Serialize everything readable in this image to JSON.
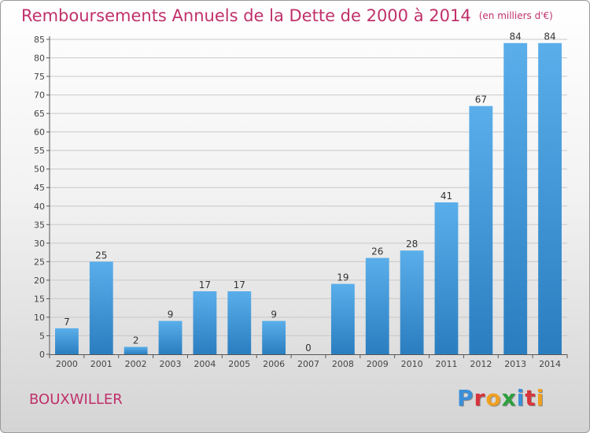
{
  "header": {
    "title": "Remboursements Annuels de la Dette de 2000 à 2014",
    "subtitle": "(en milliers d'€)"
  },
  "footer": {
    "city": "BOUXWILLER",
    "logo_text": "Proxiti"
  },
  "colors": {
    "accent": "#c0306a",
    "bar_light": "#5aaeea",
    "bar_dark": "#2a7ec0",
    "logo_letters": [
      "#3a8fd8",
      "#d8343b",
      "#f0a020",
      "#2e9f3e",
      "#3a8fd8",
      "#d8343b",
      "#f0a020"
    ]
  },
  "chart_data": {
    "type": "bar",
    "title": "Remboursements Annuels de la Dette de 2000 à 2014",
    "subtitle": "(en milliers d'€)",
    "categories": [
      "2000",
      "2001",
      "2002",
      "2003",
      "2004",
      "2005",
      "2006",
      "2007",
      "2008",
      "2009",
      "2010",
      "2011",
      "2012",
      "2013",
      "2014"
    ],
    "values": [
      7,
      25,
      2,
      9,
      17,
      17,
      9,
      0,
      19,
      26,
      28,
      41,
      67,
      84,
      84
    ],
    "yticks": [
      0,
      5,
      10,
      15,
      20,
      25,
      30,
      35,
      40,
      45,
      50,
      55,
      60,
      65,
      70,
      75,
      80,
      85
    ],
    "ylim": [
      0,
      85
    ],
    "xlabel": "",
    "ylabel": "",
    "grid": true
  }
}
